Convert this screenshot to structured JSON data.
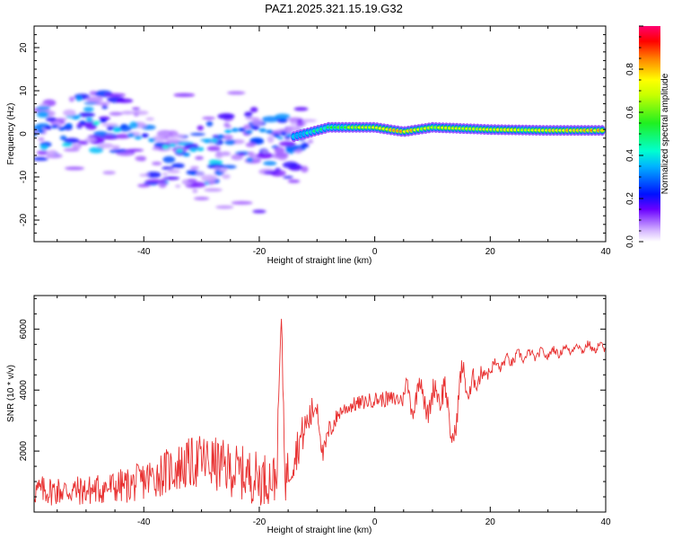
{
  "title": "PAZ1.2025.321.15.19.G32",
  "chart_data": [
    {
      "type": "heatmap",
      "xlabel": "Height of straight line (km)",
      "ylabel": "Frequency (Hz)",
      "xlim": [
        -59,
        40
      ],
      "ylim": [
        -25,
        25
      ],
      "x_ticks": [
        -40,
        -20,
        0,
        20,
        40
      ],
      "y_ticks": [
        -20,
        -10,
        0,
        10,
        20
      ],
      "x_tick_labels": [
        "-40",
        "-20",
        "0",
        "20",
        "40"
      ],
      "y_tick_labels": [
        "-20",
        "-10",
        "0",
        "10",
        "20"
      ],
      "colorbar": {
        "label": "Normalized spectral amplitude",
        "range": [
          0,
          1
        ],
        "ticks": [
          0.0,
          0.2,
          0.4,
          0.6,
          0.8
        ],
        "tick_labels": [
          "0.0",
          "0.2",
          "0.4",
          "0.6",
          "0.8"
        ]
      },
      "ridge": {
        "description": "main signal band",
        "points": [
          {
            "x": -57,
            "f": 1.0,
            "amp": 0.3
          },
          {
            "x": -50,
            "f": 3.5,
            "amp": 0.35
          },
          {
            "x": -42,
            "f": 0.5,
            "amp": 0.3
          },
          {
            "x": -33,
            "f": -4.0,
            "amp": 0.35
          },
          {
            "x": -22,
            "f": 1.5,
            "amp": 0.3
          },
          {
            "x": -15,
            "f": -1.0,
            "amp": 0.3
          },
          {
            "x": -8,
            "f": 1.5,
            "amp": 0.5
          },
          {
            "x": 0,
            "f": 1.5,
            "amp": 0.75
          },
          {
            "x": 5,
            "f": 0.5,
            "amp": 0.8
          },
          {
            "x": 10,
            "f": 1.5,
            "amp": 0.65
          },
          {
            "x": 20,
            "f": 1.0,
            "amp": 0.7
          },
          {
            "x": 30,
            "f": 0.8,
            "amp": 0.75
          },
          {
            "x": 40,
            "f": 0.8,
            "amp": 0.8
          }
        ]
      }
    },
    {
      "type": "line",
      "xlabel": "Height of straight line (km)",
      "ylabel": "SNR (10 * v/v)",
      "xlim": [
        -59,
        40
      ],
      "ylim": [
        0,
        7100
      ],
      "x_ticks": [
        -40,
        -20,
        0,
        20,
        40
      ],
      "y_ticks": [
        2000,
        4000,
        6000
      ],
      "x_tick_labels": [
        "-40",
        "-20",
        "0",
        "20",
        "40"
      ],
      "y_tick_labels": [
        "2000",
        "4000",
        "6000"
      ],
      "series": [
        {
          "name": "SNR",
          "color": "#e83030",
          "x": [
            -59,
            -50,
            -42,
            -35,
            -30,
            -25,
            -20,
            -17,
            -16.2,
            -15.5,
            -12,
            -10,
            -9,
            -8,
            -6,
            -4,
            0,
            5,
            8,
            10,
            12,
            13,
            15,
            18,
            20,
            25,
            30,
            35,
            40
          ],
          "y": [
            700,
            700,
            900,
            1400,
            1700,
            1400,
            1100,
            1100,
            6500,
            1100,
            2800,
            3600,
            1800,
            2600,
            3300,
            3500,
            3700,
            3700,
            3900,
            3500,
            4400,
            2200,
            4200,
            4400,
            4700,
            5100,
            5200,
            5400,
            5400
          ],
          "noise": [
            500,
            500,
            600,
            800,
            900,
            900,
            900,
            800,
            300,
            800,
            600,
            500,
            300,
            400,
            250,
            250,
            250,
            300,
            350,
            400,
            500,
            300,
            400,
            300,
            200,
            150,
            120,
            120,
            120
          ]
        }
      ]
    }
  ]
}
